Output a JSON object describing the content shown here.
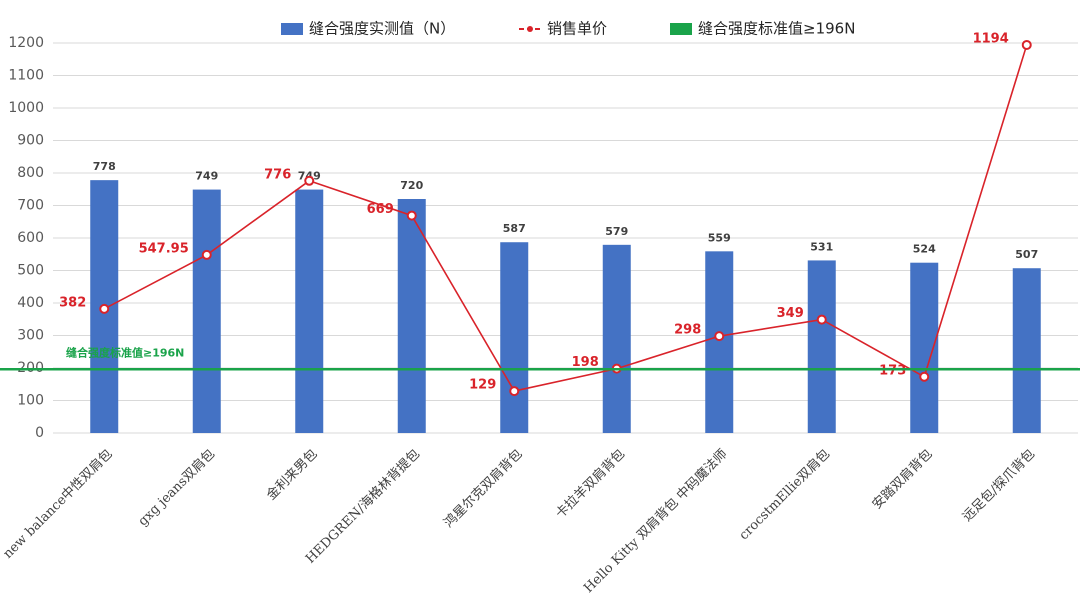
{
  "chart_data": {
    "type": "bar",
    "categories": [
      "new balance中性双肩包",
      "gxg jeans双肩包",
      "金利来男包",
      "HEDGREN/海格林背提包",
      "鸿星尔克双肩背包",
      "卡拉羊双肩背包",
      "Hello Kitty 双肩背包 中码魔法师",
      "crocstmEllie双肩包",
      "安踏双肩背包",
      "远足包/探爪背包"
    ],
    "series": [
      {
        "name": "缝合强度实测值（N）",
        "type": "bar",
        "color": "#4472c4",
        "values": [
          778,
          749,
          749,
          720,
          587,
          579,
          559,
          531,
          524,
          507
        ]
      },
      {
        "name": "销售单价",
        "type": "line",
        "color": "#d9232a",
        "values": [
          382,
          547.95,
          776,
          669,
          129,
          198,
          298,
          349,
          173,
          1194
        ]
      }
    ],
    "reference_line": {
      "name": "缝合强度标准值≥196N",
      "label": "缝合强度标准值≥196N",
      "value": 196,
      "color": "#1aa34a"
    },
    "ylim": [
      0,
      1200
    ],
    "yticks": [
      0,
      100,
      200,
      300,
      400,
      500,
      600,
      700,
      800,
      900,
      1000,
      1100,
      1200
    ],
    "grid": true,
    "legend": "top"
  }
}
